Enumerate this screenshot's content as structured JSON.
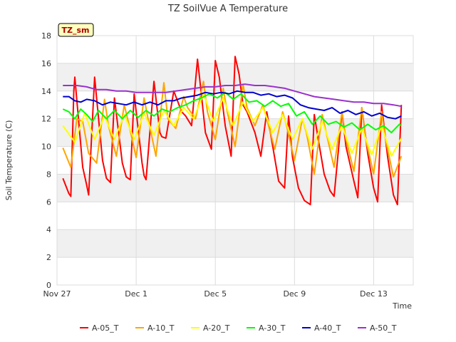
{
  "chart_data": {
    "type": "line",
    "title": "TZ SoilVue A Temperature",
    "xlabel": "Time",
    "ylabel": "Soil Temperature (C)",
    "badge": "TZ_sm",
    "xrange_days": [
      0,
      18
    ],
    "ylim": [
      0,
      18
    ],
    "grid": true,
    "legend_position": "bottom",
    "x_ticks": [
      {
        "day": 0,
        "label": "Nov 27"
      },
      {
        "day": 4,
        "label": "Dec 1"
      },
      {
        "day": 8,
        "label": "Dec 5"
      },
      {
        "day": 12,
        "label": "Dec 9"
      },
      {
        "day": 16,
        "label": "Dec 13"
      }
    ],
    "y_ticks": [
      0,
      2,
      4,
      6,
      8,
      10,
      12,
      14,
      16,
      18
    ],
    "series": [
      {
        "name": "A-05_T",
        "color": "#ff0000",
        "x": [
          0.3,
          0.6,
          0.7,
          0.85,
          0.9,
          1.3,
          1.5,
          1.6,
          1.9,
          2.3,
          2.5,
          2.7,
          2.9,
          3.3,
          3.5,
          3.7,
          3.9,
          4.3,
          4.4,
          4.5,
          4.9,
          5.2,
          5.3,
          5.5,
          5.9,
          6.3,
          6.5,
          6.8,
          7.1,
          7.2,
          7.5,
          7.8,
          8.0,
          8.2,
          8.5,
          8.8,
          9.0,
          9.2,
          9.4,
          9.6,
          10.0,
          10.3,
          10.6,
          10.9,
          11.2,
          11.5,
          11.7,
          11.9,
          12.2,
          12.5,
          12.8,
          13.0,
          13.2,
          13.5,
          13.8,
          14.0,
          14.4,
          14.6,
          15.0,
          15.2,
          15.4,
          15.7,
          16.0,
          16.2,
          16.4,
          16.7,
          17.0,
          17.2,
          17.4
        ],
        "y": [
          7.7,
          6.6,
          6.4,
          14.0,
          15.0,
          8.5,
          7.2,
          6.5,
          15.0,
          9.0,
          7.7,
          7.4,
          13.5,
          8.8,
          7.8,
          7.6,
          13.8,
          8.8,
          7.9,
          7.6,
          14.7,
          11.0,
          10.7,
          10.6,
          14.0,
          12.5,
          12.2,
          11.5,
          16.3,
          15.0,
          11.0,
          9.8,
          16.2,
          15.0,
          11.5,
          9.3,
          16.5,
          15.2,
          13.0,
          12.5,
          11.0,
          9.3,
          12.5,
          10.0,
          7.5,
          7.0,
          12.2,
          9.2,
          7.0,
          6.1,
          5.8,
          12.3,
          10.5,
          8.0,
          6.8,
          6.4,
          12.5,
          10.0,
          7.5,
          6.3,
          12.8,
          9.5,
          7.0,
          6.0,
          13.0,
          9.3,
          6.5,
          5.8,
          13.0
        ]
      },
      {
        "name": "A-10_T",
        "color": "#ffa500",
        "x": [
          0.3,
          0.7,
          1.0,
          1.3,
          1.6,
          2.0,
          2.4,
          2.6,
          3.0,
          3.4,
          3.6,
          4.0,
          4.4,
          4.6,
          5.0,
          5.4,
          5.6,
          6.0,
          6.4,
          6.6,
          7.0,
          7.4,
          7.6,
          8.0,
          8.4,
          8.6,
          9.0,
          9.4,
          9.6,
          10.0,
          10.4,
          10.6,
          11.0,
          11.4,
          11.6,
          12.0,
          12.4,
          12.6,
          13.0,
          13.4,
          13.6,
          14.0,
          14.4,
          14.6,
          15.0,
          15.4,
          15.6,
          16.0,
          16.4,
          16.6,
          17.0,
          17.4
        ],
        "y": [
          9.9,
          8.5,
          12.0,
          11.8,
          9.5,
          8.8,
          13.4,
          11.5,
          9.3,
          13.0,
          11.8,
          9.2,
          13.5,
          12.0,
          9.3,
          14.6,
          12.0,
          11.3,
          13.6,
          12.8,
          12.0,
          14.7,
          12.5,
          10.5,
          14.2,
          12.5,
          10.0,
          14.5,
          12.8,
          11.5,
          13.0,
          12.0,
          9.8,
          12.5,
          11.5,
          9.0,
          12.0,
          11.0,
          8.0,
          12.3,
          11.0,
          8.5,
          12.5,
          10.5,
          8.2,
          12.8,
          10.5,
          8.0,
          12.5,
          10.5,
          7.8,
          9.3
        ]
      },
      {
        "name": "A-20_T",
        "color": "#ffff00",
        "x": [
          0.3,
          0.9,
          1.4,
          1.9,
          2.4,
          2.9,
          3.4,
          3.9,
          4.4,
          4.9,
          5.4,
          5.9,
          6.4,
          6.9,
          7.4,
          7.9,
          8.4,
          8.9,
          9.4,
          9.9,
          10.4,
          10.9,
          11.4,
          11.9,
          12.4,
          12.9,
          13.4,
          13.9,
          14.4,
          14.9,
          15.4,
          15.9,
          16.4,
          16.9,
          17.4
        ],
        "y": [
          11.5,
          10.3,
          12.4,
          10.5,
          12.2,
          10.5,
          12.3,
          10.5,
          12.4,
          10.8,
          12.6,
          11.5,
          12.8,
          12.0,
          13.8,
          11.8,
          13.5,
          11.5,
          13.2,
          11.8,
          12.8,
          11.0,
          12.3,
          10.5,
          12.0,
          9.8,
          11.8,
          9.8,
          11.5,
          9.5,
          11.3,
          9.4,
          11.5,
          9.3,
          10.6
        ]
      },
      {
        "name": "A-30_T",
        "color": "#00ff00",
        "x": [
          0.3,
          0.6,
          0.9,
          1.2,
          1.5,
          1.8,
          2.1,
          2.5,
          2.9,
          3.3,
          3.7,
          4.1,
          4.5,
          4.9,
          5.3,
          5.7,
          6.1,
          6.5,
          6.9,
          7.3,
          7.7,
          8.1,
          8.5,
          8.9,
          9.3,
          9.7,
          10.1,
          10.5,
          10.9,
          11.3,
          11.7,
          12.1,
          12.5,
          12.9,
          13.3,
          13.7,
          14.1,
          14.5,
          14.9,
          15.3,
          15.7,
          16.1,
          16.5,
          16.9,
          17.3,
          17.4
        ],
        "y": [
          12.7,
          12.5,
          12.0,
          12.7,
          12.3,
          11.8,
          12.6,
          12.0,
          12.6,
          12.0,
          12.6,
          12.1,
          12.6,
          12.2,
          12.7,
          12.5,
          12.8,
          13.0,
          13.3,
          13.5,
          13.8,
          13.5,
          13.9,
          13.4,
          13.8,
          13.2,
          13.3,
          12.9,
          13.3,
          12.9,
          13.1,
          12.2,
          12.5,
          11.6,
          12.2,
          11.6,
          11.8,
          11.4,
          11.7,
          11.2,
          11.6,
          11.2,
          11.5,
          11.0,
          11.6,
          11.5
        ]
      },
      {
        "name": "A-40_T",
        "color": "#0000cd",
        "x": [
          0.3,
          0.6,
          0.9,
          1.2,
          1.5,
          1.9,
          2.3,
          2.7,
          3.1,
          3.5,
          3.9,
          4.3,
          4.7,
          5.1,
          5.5,
          5.9,
          6.3,
          6.7,
          7.1,
          7.5,
          7.9,
          8.3,
          8.7,
          9.1,
          9.5,
          9.9,
          10.3,
          10.7,
          11.1,
          11.5,
          11.9,
          12.3,
          12.7,
          13.1,
          13.5,
          13.9,
          14.3,
          14.7,
          15.1,
          15.5,
          15.9,
          16.3,
          16.7,
          17.1,
          17.4
        ],
        "y": [
          13.6,
          13.6,
          13.3,
          13.2,
          13.4,
          13.3,
          13.0,
          13.2,
          13.1,
          13.0,
          13.2,
          13.0,
          13.2,
          13.0,
          13.3,
          13.3,
          13.5,
          13.6,
          13.7,
          13.9,
          13.8,
          13.9,
          13.8,
          14.0,
          13.9,
          13.9,
          13.7,
          13.8,
          13.6,
          13.7,
          13.5,
          13.0,
          12.8,
          12.7,
          12.6,
          12.8,
          12.4,
          12.6,
          12.3,
          12.5,
          12.2,
          12.4,
          12.1,
          12.0,
          12.2
        ]
      },
      {
        "name": "A-50_T",
        "color": "#9932cc",
        "x": [
          0.3,
          1.0,
          1.5,
          2.0,
          2.5,
          3.0,
          3.5,
          4.0,
          4.5,
          5.0,
          5.5,
          6.0,
          6.5,
          7.0,
          7.5,
          8.0,
          8.5,
          9.0,
          9.5,
          10.0,
          10.5,
          11.0,
          11.5,
          12.0,
          12.5,
          13.0,
          13.5,
          14.0,
          14.5,
          15.0,
          15.5,
          16.0,
          16.5,
          17.0,
          17.4
        ],
        "y": [
          14.4,
          14.4,
          14.3,
          14.1,
          14.1,
          14.0,
          14.0,
          13.9,
          13.9,
          13.9,
          13.9,
          14.0,
          14.1,
          14.2,
          14.3,
          14.3,
          14.4,
          14.4,
          14.5,
          14.4,
          14.4,
          14.3,
          14.2,
          14.0,
          13.8,
          13.6,
          13.5,
          13.4,
          13.3,
          13.2,
          13.2,
          13.1,
          13.1,
          13.0,
          12.9
        ]
      }
    ]
  }
}
